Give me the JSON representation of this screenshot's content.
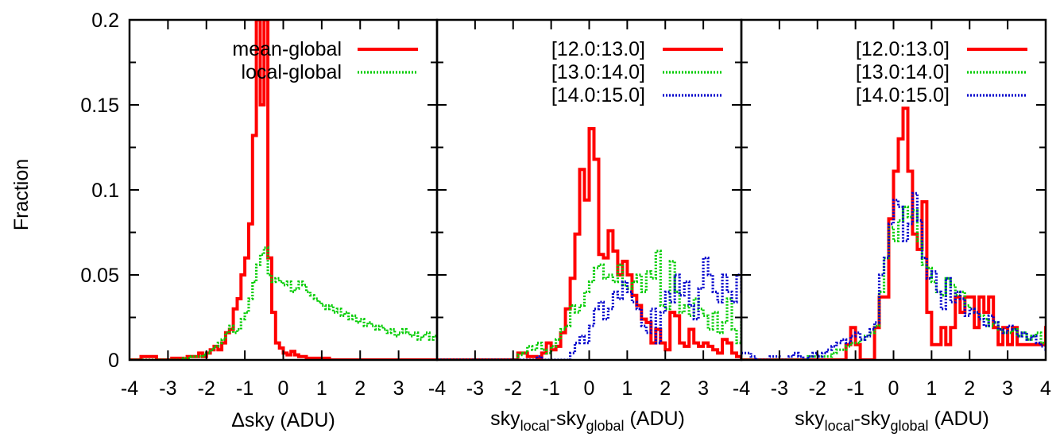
{
  "colors": {
    "red": "#ff0000",
    "green": "#00cc00",
    "blue": "#0000cc"
  },
  "y_axis": {
    "label": "Fraction",
    "ticks": [
      "0",
      "0.05",
      "0.1",
      "0.15",
      "0.2"
    ],
    "range": [
      0,
      0.2
    ]
  },
  "x_ticks": [
    "-4",
    "-3",
    "-2",
    "-1",
    "0",
    "1",
    "2",
    "3",
    "4"
  ],
  "chart_data": [
    {
      "type": "line",
      "xlim": [
        -4,
        4
      ],
      "ylim": [
        0,
        0.2
      ],
      "xlabel": "Δsky (ADU)",
      "ylabel": "Fraction",
      "legend_position": "top-right",
      "series": [
        {
          "name": "mean-global",
          "color": "red",
          "style": "solid",
          "x_start": -4.0,
          "bin": 0.1,
          "values": [
            0,
            0,
            0,
            0.002,
            0.002,
            0.002,
            0.002,
            0,
            0,
            0,
            0,
            0.001,
            0.001,
            0.001,
            0,
            0.002,
            0.002,
            0.002,
            0.004,
            0.002,
            0.004,
            0.006,
            0.008,
            0.006,
            0.01,
            0.016,
            0.018,
            0.03,
            0.036,
            0.05,
            0.06,
            0.08,
            0.132,
            0.2,
            0.15,
            0.2,
            0.06,
            0.028,
            0.01,
            0.007,
            0.004,
            0.003,
            0.005,
            0.003,
            0.002,
            0.002,
            0.001,
            0.001,
            0.001,
            0.001,
            0.001,
            0.001,
            0,
            0,
            0,
            0,
            0,
            0,
            0,
            0,
            0,
            0,
            0,
            0,
            0,
            0,
            0,
            0,
            0,
            0,
            0,
            0,
            0,
            0,
            0,
            0,
            0,
            0,
            0,
            0
          ]
        },
        {
          "name": "local-global",
          "color": "green",
          "style": "dotted",
          "x_start": -4.0,
          "bin": 0.1,
          "values": [
            0,
            0,
            0,
            0,
            0,
            0,
            0,
            0,
            0,
            0,
            0,
            0,
            0,
            0,
            0.001,
            0.001,
            0.002,
            0.002,
            0.002,
            0.003,
            0.004,
            0.006,
            0.008,
            0.01,
            0.012,
            0.016,
            0.02,
            0.016,
            0.018,
            0.024,
            0.028,
            0.036,
            0.046,
            0.056,
            0.062,
            0.066,
            0.05,
            0.046,
            0.048,
            0.046,
            0.044,
            0.046,
            0.04,
            0.042,
            0.046,
            0.044,
            0.04,
            0.038,
            0.036,
            0.034,
            0.032,
            0.03,
            0.032,
            0.028,
            0.03,
            0.026,
            0.028,
            0.024,
            0.026,
            0.022,
            0.024,
            0.02,
            0.022,
            0.02,
            0.018,
            0.02,
            0.018,
            0.016,
            0.018,
            0.014,
            0.016,
            0.018,
            0.016,
            0.014,
            0.016,
            0.012,
            0.014,
            0.016,
            0.012,
            0.014
          ]
        }
      ]
    },
    {
      "type": "line",
      "xlim": [
        -4,
        4
      ],
      "ylim": [
        0,
        0.2
      ],
      "xlabel_parts": [
        "sky",
        "local",
        "-sky",
        "global",
        " (ADU)"
      ],
      "legend_position": "top-right",
      "series": [
        {
          "name": "[12.0:13.0]",
          "color": "red",
          "style": "solid",
          "x_start": -4.0,
          "bin": 0.125,
          "values": [
            0,
            0,
            0,
            0,
            0,
            0,
            0,
            0,
            0,
            0,
            0,
            0,
            0,
            0,
            0,
            0,
            0,
            0.004,
            0.004,
            0.002,
            0.002,
            0.001,
            0.004,
            0.01,
            0.006,
            0.008,
            0.016,
            0.03,
            0.048,
            0.074,
            0.112,
            0.094,
            0.136,
            0.118,
            0.062,
            0.06,
            0.076,
            0.064,
            0.05,
            0.058,
            0.05,
            0.038,
            0.032,
            0.024,
            0.022,
            0.01,
            0.018,
            0.01,
            0.006,
            0.028,
            0.026,
            0.01,
            0.008,
            0.018,
            0.01,
            0.008,
            0.01,
            0.008,
            0.006,
            0.004,
            0.012,
            0.01,
            0.004,
            0.002,
            0.001
          ]
        },
        {
          "name": "[13.0:14.0]",
          "color": "green",
          "style": "dotted",
          "x_start": -4.0,
          "bin": 0.125,
          "values": [
            0,
            0,
            0,
            0,
            0,
            0,
            0,
            0,
            0,
            0,
            0,
            0,
            0,
            0,
            0,
            0,
            0,
            0.003,
            0.004,
            0.008,
            0.006,
            0.01,
            0.006,
            0.004,
            0.008,
            0.012,
            0.018,
            0.02,
            0.032,
            0.028,
            0.032,
            0.04,
            0.046,
            0.054,
            0.056,
            0.048,
            0.05,
            0.046,
            0.056,
            0.044,
            0.042,
            0.046,
            0.05,
            0.04,
            0.052,
            0.048,
            0.064,
            0.032,
            0.03,
            0.058,
            0.04,
            0.028,
            0.032,
            0.026,
            0.036,
            0.03,
            0.026,
            0.018,
            0.028,
            0.016,
            0.022,
            0.036,
            0.018,
            0.01,
            0.022
          ]
        },
        {
          "name": "[14.0:15.0]",
          "color": "blue",
          "style": "dotted",
          "x_start": -4.0,
          "bin": 0.125,
          "values": [
            0,
            0,
            0,
            0,
            0,
            0,
            0,
            0,
            0,
            0,
            0,
            0,
            0,
            0,
            0,
            0,
            0,
            0,
            0,
            0,
            0,
            0.002,
            0,
            0,
            0,
            0,
            0,
            0,
            0.004,
            0.01,
            0.014,
            0.01,
            0.02,
            0.03,
            0.034,
            0.024,
            0.03,
            0.04,
            0.036,
            0.046,
            0.04,
            0.034,
            0.03,
            0.02,
            0.016,
            0.03,
            0.01,
            0.028,
            0.04,
            0.034,
            0.05,
            0.038,
            0.046,
            0.032,
            0.024,
            0.042,
            0.06,
            0.05,
            0.04,
            0.034,
            0.05,
            0.04,
            0.034,
            0.05,
            0.04
          ]
        }
      ]
    },
    {
      "type": "line",
      "xlim": [
        -4,
        4
      ],
      "ylim": [
        0,
        0.2
      ],
      "xlabel_parts": [
        "sky",
        "local",
        "-sky",
        "global",
        " (ADU)"
      ],
      "legend_position": "top-right",
      "series": [
        {
          "name": "[12.0:13.0]",
          "color": "red",
          "style": "solid",
          "x_start": -4.0,
          "bin": 0.125,
          "values": [
            0,
            0,
            0,
            0,
            0,
            0,
            0,
            0,
            0,
            0,
            0,
            0,
            0,
            0,
            0,
            0,
            0,
            0,
            0,
            0,
            0,
            0,
            0.009,
            0.019,
            0.009,
            0,
            0,
            0,
            0.019,
            0.037,
            0.037,
            0.083,
            0.111,
            0.13,
            0.148,
            0.111,
            0.074,
            0.065,
            0.093,
            0.028,
            0.009,
            0.009,
            0.019,
            0.009,
            0.019,
            0.037,
            0.028,
            0.037,
            0.037,
            0.019,
            0.037,
            0.028,
            0.037,
            0.019,
            0.009,
            0.019,
            0.009,
            0.019,
            0.009,
            0.009,
            0.009,
            0.009,
            0.009,
            0.009,
            0.019
          ]
        },
        {
          "name": "[13.0:14.0]",
          "color": "green",
          "style": "dotted",
          "x_start": -4.0,
          "bin": 0.125,
          "values": [
            0,
            0,
            0,
            0,
            0,
            0,
            0,
            0,
            0,
            0,
            0,
            0,
            0,
            0,
            0.002,
            0.002,
            0.002,
            0.002,
            0.002,
            0.004,
            0.006,
            0.006,
            0.008,
            0.01,
            0.01,
            0.012,
            0.014,
            0.016,
            0.02,
            0.04,
            0.06,
            0.078,
            0.07,
            0.082,
            0.09,
            0.084,
            0.088,
            0.07,
            0.056,
            0.054,
            0.046,
            0.04,
            0.038,
            0.048,
            0.044,
            0.038,
            0.04,
            0.032,
            0.03,
            0.028,
            0.026,
            0.024,
            0.02,
            0.022,
            0.018,
            0.016,
            0.016,
            0.018,
            0.014,
            0.016,
            0.012,
            0.014,
            0.016,
            0.01,
            0.012
          ]
        },
        {
          "name": "[14.0:15.0]",
          "color": "blue",
          "style": "dotted",
          "x_start": -4.0,
          "bin": 0.125,
          "values": [
            0.004,
            0.004,
            0.002,
            0,
            0,
            0,
            0.002,
            0.002,
            0,
            0,
            0.002,
            0.004,
            0.002,
            0,
            0.002,
            0.004,
            0.002,
            0.004,
            0.006,
            0.008,
            0.01,
            0.012,
            0.01,
            0.014,
            0.016,
            0.012,
            0.014,
            0.018,
            0.022,
            0.05,
            0.06,
            0.08,
            0.094,
            0.09,
            0.07,
            0.08,
            0.098,
            0.082,
            0.06,
            0.048,
            0.052,
            0.04,
            0.03,
            0.048,
            0.034,
            0.04,
            0.036,
            0.026,
            0.03,
            0.028,
            0.024,
            0.02,
            0.026,
            0.022,
            0.018,
            0.016,
            0.02,
            0.018,
            0.014,
            0.016,
            0.012,
            0.014,
            0.01,
            0.008,
            0.006
          ]
        }
      ]
    }
  ]
}
